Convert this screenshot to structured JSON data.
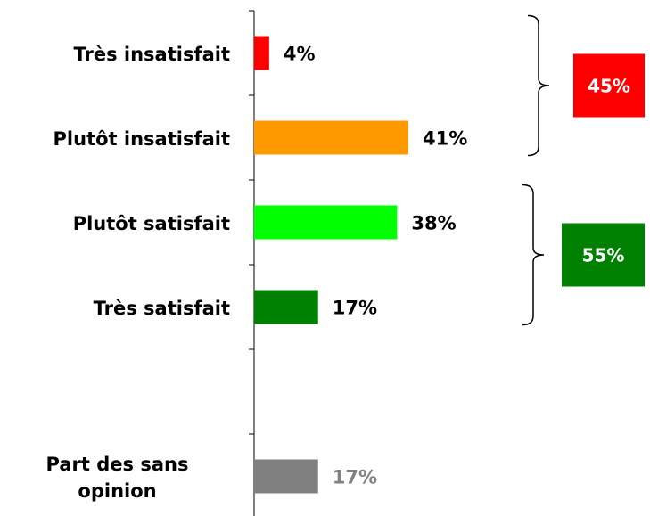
{
  "chart_data": {
    "type": "barh",
    "categories": [
      "Très insatisfait",
      "Plutôt insatisfait",
      "Plutôt satisfait",
      "Très satisfait",
      null,
      "Part des sans opinion"
    ],
    "values": [
      4,
      41,
      38,
      17,
      null,
      17
    ],
    "value_labels": [
      "4%",
      "41%",
      "38%",
      "17%",
      null,
      "17%"
    ],
    "colors": [
      "#ff0000",
      "#ff9900",
      "#00ff00",
      "#008000",
      null,
      "#808080"
    ],
    "value_label_colors": [
      "#000000",
      "#000000",
      "#000000",
      "#000000",
      null,
      "#808080"
    ],
    "xlim": [
      0,
      100
    ],
    "groups": [
      {
        "value": 45,
        "label": "45%",
        "color": "#ff0000"
      },
      {
        "value": 55,
        "label": "55%",
        "color": "#008000"
      }
    ]
  }
}
